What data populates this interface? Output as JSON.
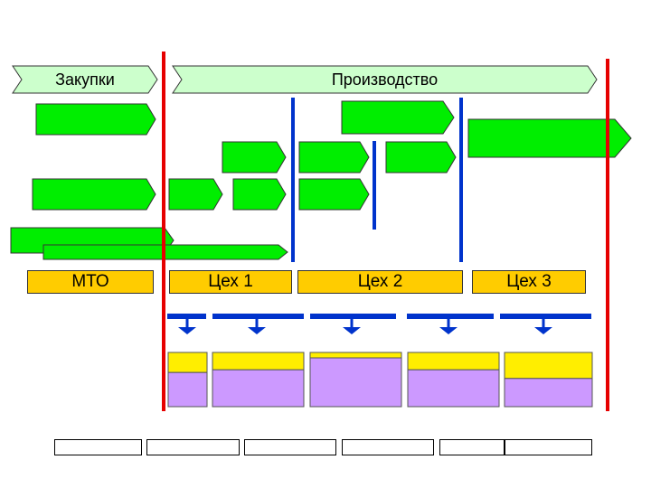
{
  "phases": {
    "procurement": "Закупки",
    "production": "Производство"
  },
  "workshops": {
    "mto": "МТО",
    "shop1": "Цех 1",
    "shop2": "Цех 2",
    "shop3": "Цех 3"
  },
  "colors": {
    "task_green": "#00ee00",
    "phase_fill": "#ccffcc",
    "workshop_fill": "#ffcc00",
    "red_line": "#e60000",
    "blue_line": "#0033cc",
    "yellow_bar": "#ffee00",
    "purple_bar": "#cc99ff"
  },
  "load_bars": [
    {
      "yellow": 0.37,
      "purple": 0.63
    },
    {
      "yellow": 0.32,
      "purple": 0.68
    },
    {
      "yellow": 0.1,
      "purple": 0.9
    },
    {
      "yellow": 0.32,
      "purple": 0.68
    },
    {
      "yellow": 0.48,
      "purple": 0.52
    }
  ]
}
